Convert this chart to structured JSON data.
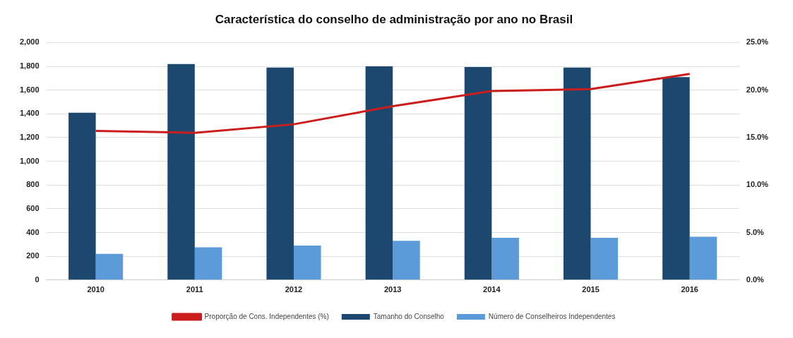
{
  "chart_data": {
    "type": "bar",
    "title": "Característica do conselho de administração por ano no Brasil",
    "categories": [
      "2010",
      "2011",
      "2012",
      "2013",
      "2014",
      "2015",
      "2016"
    ],
    "series": [
      {
        "name": "Tamanho do Conselho",
        "color": "#1c4870",
        "values": [
          1410,
          1820,
          1790,
          1800,
          1795,
          1790,
          1710
        ]
      },
      {
        "name": "Número de Conselheiros Independentes",
        "color": "#5b9bd9",
        "values": [
          220,
          275,
          290,
          330,
          355,
          355,
          365
        ]
      },
      {
        "name": "Proporção de Cons. Independentes (%)",
        "type": "line",
        "axis": "y2",
        "color": "#cc1d1d",
        "values": [
          15.7,
          15.5,
          16.4,
          18.3,
          19.9,
          20.1,
          21.7
        ]
      }
    ],
    "ylim": [
      0,
      2000
    ],
    "yticks": [
      {
        "value": 0,
        "label": "0"
      },
      {
        "value": 200,
        "label": "200"
      },
      {
        "value": 400,
        "label": "400"
      },
      {
        "value": 600,
        "label": "600"
      },
      {
        "value": 800,
        "label": "800"
      },
      {
        "value": 1000,
        "label": "1,000"
      },
      {
        "value": 1200,
        "label": "1,200"
      },
      {
        "value": 1400,
        "label": "1,400"
      },
      {
        "value": 1600,
        "label": "1,600"
      },
      {
        "value": 1800,
        "label": "1,800"
      },
      {
        "value": 2000,
        "label": "2,000"
      }
    ],
    "y2lim": [
      0,
      25
    ],
    "y2ticks": [
      {
        "value": 0,
        "label": "0.0%"
      },
      {
        "value": 5,
        "label": "5.0%"
      },
      {
        "value": 10,
        "label": "10.0%"
      },
      {
        "value": 15,
        "label": "15.0%"
      },
      {
        "value": 20,
        "label": "20.0%"
      },
      {
        "value": 25,
        "label": "25.0%"
      }
    ],
    "grid": "y",
    "legend": "bottom",
    "marker": "none"
  }
}
